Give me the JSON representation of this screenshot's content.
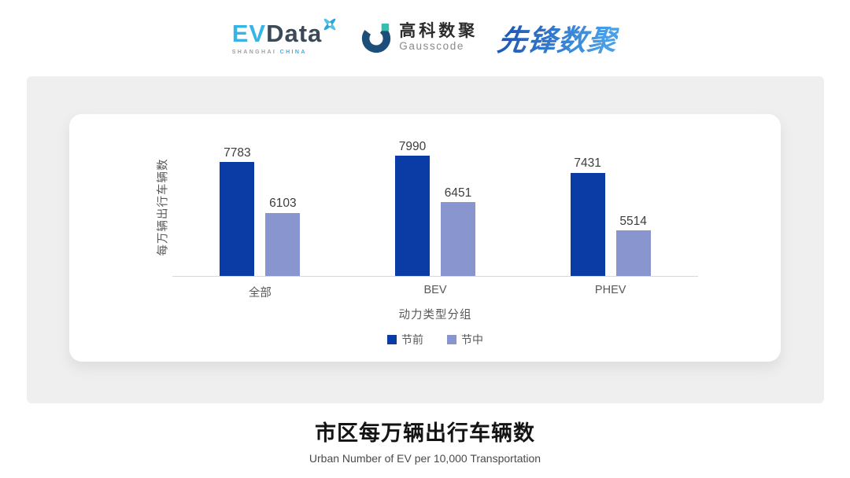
{
  "brand": {
    "evdata_blue": "#35b4e5",
    "evdata_dark": "#3c4956",
    "gausscode_navy": "#1c4e79",
    "gausscode_teal": "#35bdb2",
    "xf_dark": "#1f5ab8",
    "xf_light": "#4aa0e8"
  },
  "header": {
    "evdata": {
      "ev": "EV",
      "data": "Data",
      "sub_left": "SHANGHAI",
      "sub_right": "CHINA"
    },
    "gausscode": {
      "cn": "高科数聚",
      "en": "Gausscode"
    },
    "xianfeng": {
      "text": "先锋数聚"
    }
  },
  "chart_data": {
    "type": "bar",
    "title": "市区每万辆出行车辆数",
    "subtitle": "Urban Number of EV per 10,000 Transportation",
    "categories": [
      "全部",
      "BEV",
      "PHEV"
    ],
    "series": [
      {
        "name": "节前",
        "color": "#0b3ca6",
        "values": [
          7783,
          7990,
          7431
        ]
      },
      {
        "name": "节中",
        "color": "#8995cf",
        "values": [
          6103,
          6451,
          5514
        ]
      }
    ],
    "xlabel": "动力类型分组",
    "ylabel": "每万辆出行车辆数",
    "ylim": [
      4000,
      8600
    ],
    "grid": false,
    "legend_position": "bottom",
    "value_labels": true
  }
}
